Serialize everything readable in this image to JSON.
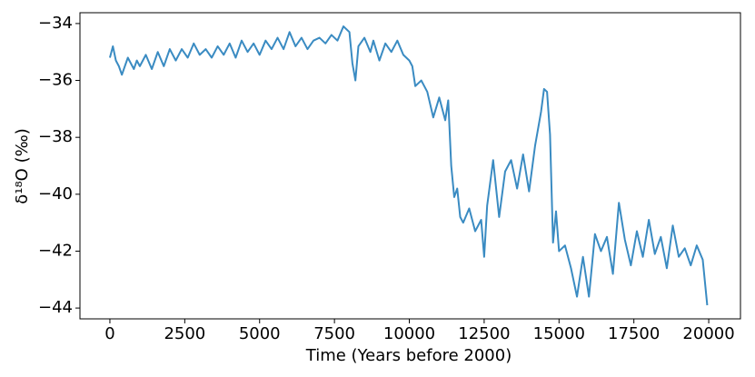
{
  "chart_data": {
    "type": "line",
    "xlabel": "Time (Years before 2000)",
    "ylabel": "δ¹⁸O (‰)",
    "color": "#3a8bc2",
    "x": [
      0,
      100,
      200,
      300,
      400,
      500,
      600,
      700,
      800,
      900,
      1000,
      1200,
      1400,
      1600,
      1800,
      2000,
      2200,
      2400,
      2600,
      2800,
      3000,
      3200,
      3400,
      3600,
      3800,
      4000,
      4200,
      4400,
      4600,
      4800,
      5000,
      5200,
      5400,
      5600,
      5800,
      6000,
      6200,
      6400,
      6600,
      6800,
      7000,
      7200,
      7400,
      7600,
      7800,
      8000,
      8100,
      8200,
      8300,
      8500,
      8700,
      8800,
      9000,
      9200,
      9400,
      9600,
      9800,
      10000,
      10100,
      10200,
      10400,
      10600,
      10800,
      11000,
      11200,
      11300,
      11400,
      11500,
      11600,
      11700,
      11800,
      12000,
      12200,
      12400,
      12500,
      12600,
      12800,
      13000,
      13200,
      13400,
      13600,
      13800,
      14000,
      14200,
      14400,
      14500,
      14600,
      14700,
      14800,
      14900,
      15000,
      15200,
      15400,
      15600,
      15800,
      16000,
      16200,
      16400,
      16600,
      16800,
      17000,
      17200,
      17400,
      17600,
      17800,
      18000,
      18200,
      18400,
      18600,
      18800,
      19000,
      19200,
      19400,
      19600,
      19800,
      19950
    ],
    "values": [
      -35.2,
      -34.8,
      -35.3,
      -35.5,
      -35.8,
      -35.5,
      -35.2,
      -35.4,
      -35.6,
      -35.3,
      -35.5,
      -35.1,
      -35.6,
      -35.0,
      -35.5,
      -34.9,
      -35.3,
      -34.9,
      -35.2,
      -34.7,
      -35.1,
      -34.9,
      -35.2,
      -34.8,
      -35.1,
      -34.7,
      -35.2,
      -34.6,
      -35.0,
      -34.7,
      -35.1,
      -34.6,
      -34.9,
      -34.5,
      -34.9,
      -34.3,
      -34.8,
      -34.5,
      -34.9,
      -34.6,
      -34.5,
      -34.7,
      -34.4,
      -34.6,
      -34.1,
      -34.3,
      -35.4,
      -36.0,
      -34.8,
      -34.5,
      -35.0,
      -34.6,
      -35.3,
      -34.7,
      -35.0,
      -34.6,
      -35.1,
      -35.3,
      -35.5,
      -36.2,
      -36.0,
      -36.4,
      -37.3,
      -36.6,
      -37.4,
      -36.7,
      -39.0,
      -40.1,
      -39.8,
      -40.8,
      -41.0,
      -40.5,
      -41.3,
      -40.9,
      -42.2,
      -40.4,
      -38.8,
      -40.8,
      -39.2,
      -38.8,
      -39.8,
      -38.6,
      -39.9,
      -38.3,
      -37.1,
      -36.3,
      -36.4,
      -37.9,
      -41.7,
      -40.6,
      -42.0,
      -41.8,
      -42.6,
      -43.6,
      -42.2,
      -43.6,
      -41.4,
      -42.0,
      -41.5,
      -42.8,
      -40.3,
      -41.6,
      -42.5,
      -41.3,
      -42.2,
      -40.9,
      -42.1,
      -41.5,
      -42.6,
      -41.1,
      -42.2,
      -41.9,
      -42.5,
      -41.8,
      -42.3,
      -43.9
    ],
    "xlim": [
      -1000,
      21060
    ],
    "ylim": [
      -44.38,
      -33.62
    ],
    "xticks": [
      0,
      2500,
      5000,
      7500,
      10000,
      12500,
      15000,
      17500,
      20000
    ],
    "yticks": [
      {
        "value": -44,
        "label": "−44"
      },
      {
        "value": -42,
        "label": "−42"
      },
      {
        "value": -40,
        "label": "−40"
      },
      {
        "value": -38,
        "label": "−38"
      },
      {
        "value": -36,
        "label": "−36"
      },
      {
        "value": -34,
        "label": "−34"
      }
    ]
  }
}
